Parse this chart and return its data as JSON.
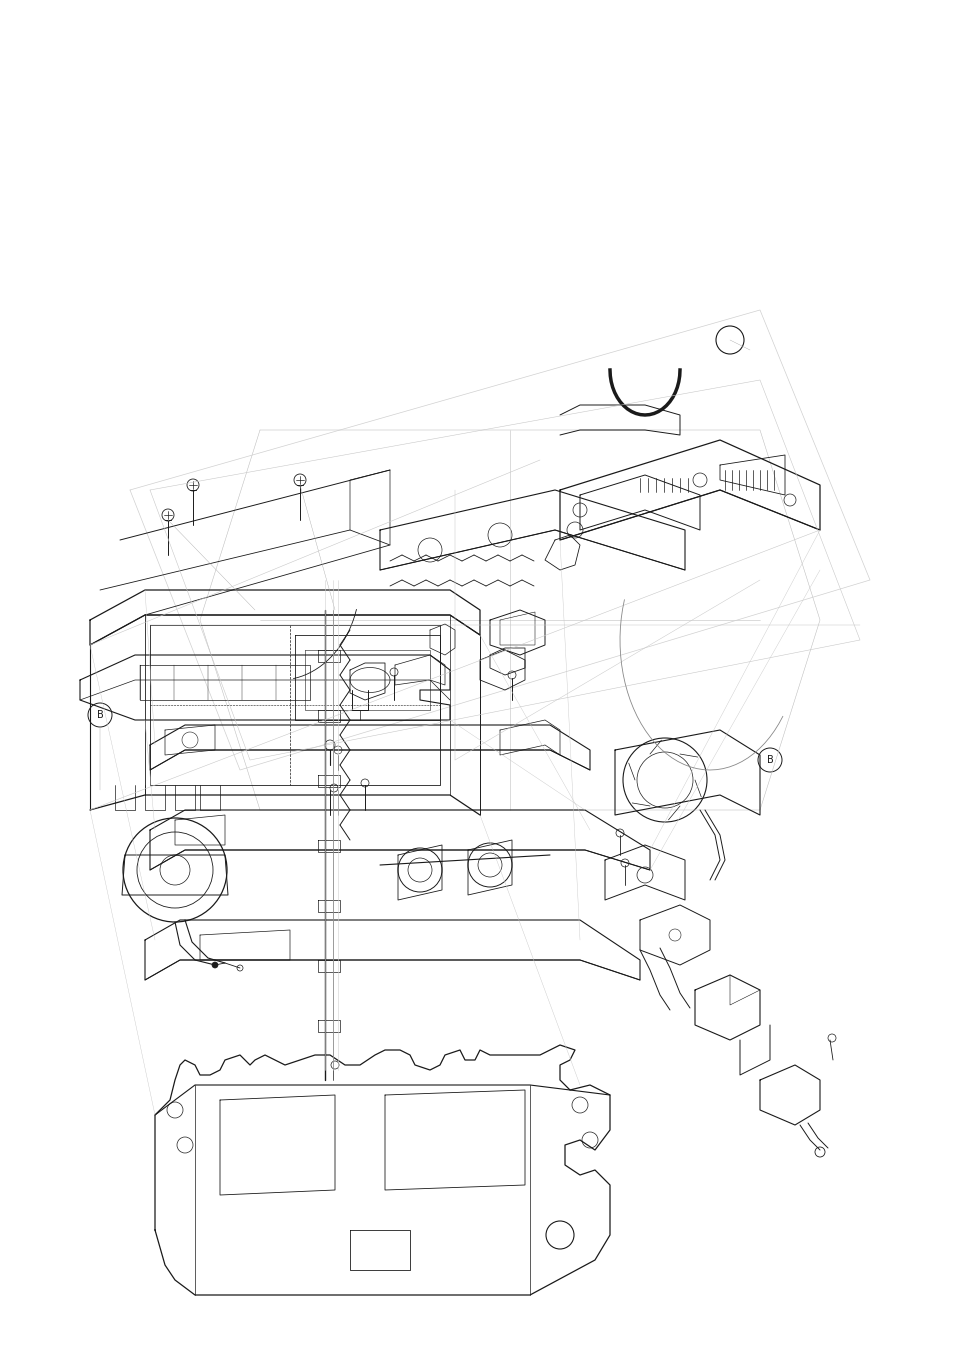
{
  "background_color": "#ffffff",
  "line_color": "#1a1a1a",
  "fig_width": 9.54,
  "fig_height": 13.51,
  "dpi": 100
}
